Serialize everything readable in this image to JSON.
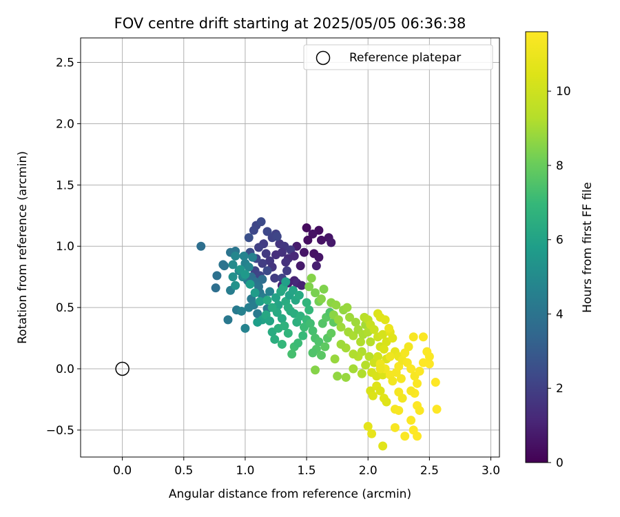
{
  "chart_data": {
    "type": "scatter",
    "title": "FOV centre drift starting at 2025/05/05 06:36:38",
    "xlabel": "Angular distance from reference (arcmin)",
    "ylabel": "Rotation from reference (arcmin)",
    "xlim": [
      -0.34,
      3.07
    ],
    "ylim": [
      -0.72,
      2.7
    ],
    "xticks": [
      "0.0",
      "0.5",
      "1.0",
      "1.5",
      "2.0",
      "2.5",
      "3.0"
    ],
    "yticks": [
      "−0.5",
      "0.0",
      "0.5",
      "1.0",
      "1.5",
      "2.0",
      "2.5"
    ],
    "grid": true,
    "legend": {
      "placement": "top-right",
      "entries": [
        "Reference platepar"
      ]
    },
    "reference_point": {
      "x": 0.0,
      "y": 0.0,
      "label": "Reference platepar"
    },
    "colorbar": {
      "label": "Hours from first FF file",
      "colormap": "viridis",
      "range": [
        0,
        11.6
      ],
      "ticks": [
        "0",
        "2",
        "4",
        "6",
        "8",
        "10"
      ]
    },
    "series": [
      {
        "color_by": "hours",
        "points": [
          [
            1.5,
            1.15,
            0.3
          ],
          [
            1.6,
            1.13,
            0.4
          ],
          [
            1.55,
            1.1,
            0.5
          ],
          [
            1.68,
            1.07,
            0.6
          ],
          [
            1.7,
            1.03,
            0.7
          ],
          [
            1.51,
            1.05,
            0.4
          ],
          [
            1.62,
            1.05,
            0.5
          ],
          [
            1.42,
            1.0,
            0.8
          ],
          [
            1.48,
            0.95,
            0.6
          ],
          [
            1.56,
            0.94,
            0.5
          ],
          [
            1.6,
            0.91,
            0.6
          ],
          [
            1.45,
            0.84,
            0.7
          ],
          [
            1.58,
            0.84,
            0.9
          ],
          [
            1.4,
            0.72,
            1.0
          ],
          [
            1.3,
            0.68,
            1.1
          ],
          [
            1.35,
            0.7,
            1.0
          ],
          [
            1.42,
            0.7,
            1.2
          ],
          [
            1.46,
            0.68,
            1.0
          ],
          [
            1.09,
            1.17,
            2.2
          ],
          [
            1.13,
            1.2,
            2.4
          ],
          [
            1.07,
            1.13,
            2.3
          ],
          [
            1.18,
            1.12,
            2.3
          ],
          [
            1.25,
            1.1,
            2.0
          ],
          [
            1.22,
            1.07,
            2.1
          ],
          [
            1.28,
            1.02,
            1.6
          ],
          [
            1.32,
            1.0,
            1.7
          ],
          [
            1.37,
            0.97,
            1.8
          ],
          [
            1.3,
            0.95,
            1.5
          ],
          [
            1.25,
            0.93,
            1.4
          ],
          [
            1.35,
            0.9,
            1.3
          ],
          [
            1.4,
            0.92,
            1.2
          ],
          [
            1.15,
            1.02,
            1.9
          ],
          [
            1.11,
            0.99,
            2.0
          ],
          [
            1.17,
            0.94,
            1.8
          ],
          [
            1.2,
            0.88,
            1.7
          ],
          [
            1.22,
            0.83,
            1.6
          ],
          [
            1.14,
            0.86,
            1.9
          ],
          [
            1.09,
            0.9,
            2.3
          ],
          [
            1.04,
            0.95,
            2.5
          ],
          [
            1.08,
            0.8,
            2.1
          ],
          [
            1.12,
            0.76,
            2.2
          ],
          [
            1.03,
            1.07,
            2.6
          ],
          [
            1.26,
            1.08,
            2.2
          ],
          [
            1.33,
            0.87,
            1.5
          ],
          [
            1.18,
            0.8,
            2.4
          ],
          [
            1.24,
            0.74,
            1.9
          ],
          [
            1.3,
            0.74,
            2.1
          ],
          [
            1.34,
            0.8,
            1.9
          ],
          [
            0.64,
            1.0,
            3.8
          ],
          [
            0.77,
            0.76,
            3.9
          ],
          [
            0.76,
            0.66,
            3.8
          ],
          [
            0.82,
            0.85,
            4.0
          ],
          [
            0.83,
            0.84,
            4.0
          ],
          [
            0.88,
            0.95,
            4.0
          ],
          [
            0.92,
            0.96,
            4.1
          ],
          [
            0.86,
            0.4,
            4.2
          ],
          [
            0.93,
            0.48,
            4.3
          ],
          [
            0.88,
            0.64,
            4.4
          ],
          [
            0.97,
            0.47,
            4.6
          ],
          [
            1.0,
            0.33,
            4.7
          ],
          [
            1.03,
            0.5,
            4.5
          ],
          [
            1.05,
            0.57,
            4.3
          ],
          [
            1.07,
            0.52,
            4.4
          ],
          [
            1.1,
            0.45,
            4.3
          ],
          [
            1.12,
            0.62,
            4.2
          ],
          [
            1.15,
            0.58,
            4.4
          ],
          [
            1.18,
            0.49,
            4.3
          ],
          [
            1.2,
            0.63,
            4.6
          ],
          [
            1.02,
            0.72,
            4.2
          ],
          [
            1.05,
            0.75,
            3.8
          ],
          [
            1.08,
            0.71,
            3.9
          ],
          [
            1.11,
            0.67,
            4.0
          ],
          [
            1.14,
            0.73,
            3.8
          ],
          [
            0.95,
            0.8,
            4.8
          ],
          [
            0.98,
            0.75,
            4.9
          ],
          [
            1.0,
            0.86,
            4.6
          ],
          [
            1.03,
            0.83,
            4.8
          ],
          [
            0.9,
            0.85,
            5.0
          ],
          [
            0.92,
            0.92,
            4.8
          ],
          [
            0.99,
            0.92,
            4.7
          ],
          [
            1.06,
            0.91,
            4.6
          ],
          [
            0.9,
            0.75,
            5.2
          ],
          [
            0.92,
            0.68,
            5.3
          ],
          [
            0.96,
            0.81,
            5.5
          ],
          [
            1.0,
            0.77,
            5.6
          ],
          [
            1.04,
            0.69,
            5.8
          ],
          [
            1.08,
            0.62,
            5.7
          ],
          [
            1.12,
            0.55,
            5.9
          ],
          [
            1.14,
            0.4,
            6.0
          ],
          [
            1.1,
            0.38,
            5.8
          ],
          [
            1.17,
            0.44,
            6.2
          ],
          [
            1.2,
            0.39,
            6.1
          ],
          [
            1.22,
            0.3,
            6.4
          ],
          [
            1.24,
            0.24,
            6.5
          ],
          [
            1.27,
            0.33,
            6.6
          ],
          [
            1.3,
            0.41,
            6.3
          ],
          [
            1.32,
            0.35,
            6.7
          ],
          [
            1.35,
            0.29,
            6.8
          ],
          [
            1.3,
            0.2,
            6.9
          ],
          [
            1.37,
            0.47,
            6.4
          ],
          [
            1.4,
            0.45,
            6.5
          ],
          [
            1.42,
            0.38,
            6.6
          ],
          [
            1.45,
            0.43,
            6.7
          ],
          [
            1.47,
            0.27,
            7.0
          ],
          [
            1.4,
            0.18,
            7.2
          ],
          [
            1.38,
            0.12,
            7.3
          ],
          [
            1.43,
            0.21,
            7.1
          ],
          [
            1.25,
            0.58,
            6.0
          ],
          [
            1.27,
            0.52,
            6.1
          ],
          [
            1.29,
            0.63,
            6.2
          ],
          [
            1.31,
            0.66,
            6.3
          ],
          [
            1.33,
            0.55,
            6.4
          ],
          [
            1.35,
            0.5,
            6.5
          ],
          [
            1.26,
            0.46,
            6.3
          ],
          [
            1.22,
            0.5,
            6.4
          ],
          [
            1.18,
            0.56,
            6.3
          ],
          [
            1.33,
            0.71,
            5.9
          ],
          [
            1.36,
            0.6,
            6.0
          ],
          [
            1.39,
            0.64,
            6.1
          ],
          [
            1.41,
            0.56,
            6.2
          ],
          [
            1.44,
            0.6,
            6.3
          ],
          [
            1.5,
            0.54,
            6.8
          ],
          [
            1.52,
            0.48,
            6.9
          ],
          [
            1.5,
            0.4,
            7.0
          ],
          [
            1.48,
            0.34,
            7.1
          ],
          [
            1.53,
            0.37,
            7.2
          ],
          [
            1.55,
            0.31,
            7.3
          ],
          [
            1.57,
            0.25,
            7.4
          ],
          [
            1.6,
            0.22,
            7.5
          ],
          [
            1.58,
            0.16,
            7.6
          ],
          [
            1.55,
            0.13,
            7.5
          ],
          [
            1.62,
            0.11,
            7.7
          ],
          [
            1.65,
            0.18,
            7.8
          ],
          [
            1.67,
            0.25,
            7.7
          ],
          [
            1.7,
            0.29,
            7.9
          ],
          [
            1.63,
            0.37,
            7.6
          ],
          [
            1.66,
            0.42,
            7.7
          ],
          [
            1.69,
            0.46,
            7.5
          ],
          [
            1.72,
            0.38,
            7.8
          ],
          [
            1.52,
            0.67,
            8.4
          ],
          [
            1.54,
            0.74,
            8.5
          ],
          [
            1.57,
            0.62,
            8.3
          ],
          [
            1.6,
            0.55,
            8.2
          ],
          [
            1.62,
            0.57,
            8.5
          ],
          [
            1.64,
            0.65,
            8.4
          ],
          [
            1.7,
            0.54,
            8.6
          ],
          [
            1.74,
            0.52,
            8.7
          ],
          [
            1.72,
            0.44,
            8.6
          ],
          [
            1.76,
            0.4,
            8.8
          ],
          [
            1.78,
            0.34,
            8.9
          ],
          [
            1.8,
            0.48,
            8.7
          ],
          [
            1.83,
            0.5,
            8.8
          ],
          [
            1.85,
            0.42,
            8.9
          ],
          [
            1.84,
            0.3,
            9.0
          ],
          [
            1.88,
            0.27,
            9.1
          ],
          [
            1.9,
            0.38,
            8.9
          ],
          [
            1.92,
            0.32,
            9.0
          ],
          [
            1.94,
            0.22,
            9.2
          ],
          [
            1.96,
            0.28,
            9.1
          ],
          [
            1.98,
            0.36,
            9.0
          ],
          [
            2.0,
            0.3,
            9.2
          ],
          [
            2.02,
            0.22,
            9.3
          ],
          [
            1.95,
            0.14,
            9.2
          ],
          [
            1.92,
            0.1,
            9.3
          ],
          [
            1.88,
            0.12,
            9.2
          ],
          [
            1.82,
            0.17,
            9.0
          ],
          [
            1.78,
            0.2,
            8.9
          ],
          [
            1.73,
            0.08,
            8.8
          ],
          [
            1.75,
            -0.06,
            8.7
          ],
          [
            1.82,
            -0.07,
            8.8
          ],
          [
            1.88,
            0.0,
            9.0
          ],
          [
            1.95,
            -0.04,
            9.2
          ],
          [
            1.98,
            0.03,
            9.3
          ],
          [
            2.01,
            0.1,
            9.4
          ],
          [
            1.57,
            -0.01,
            8.5
          ],
          [
            1.97,
            0.42,
            9.4
          ],
          [
            2.0,
            0.4,
            9.5
          ],
          [
            2.02,
            0.36,
            9.8
          ],
          [
            2.05,
            0.32,
            9.9
          ],
          [
            2.08,
            0.26,
            10.0
          ],
          [
            2.1,
            0.18,
            10.1
          ],
          [
            2.12,
            0.28,
            10.2
          ],
          [
            2.15,
            0.22,
            10.3
          ],
          [
            2.13,
            0.16,
            10.4
          ],
          [
            2.15,
            0.08,
            10.4
          ],
          [
            2.05,
            0.05,
            10.0
          ],
          [
            2.08,
            0.1,
            10.1
          ],
          [
            2.03,
            -0.03,
            10.2
          ],
          [
            2.07,
            -0.06,
            10.3
          ],
          [
            2.12,
            -0.05,
            10.4
          ],
          [
            2.02,
            -0.18,
            10.3
          ],
          [
            2.04,
            -0.22,
            10.4
          ],
          [
            2.07,
            -0.14,
            10.5
          ],
          [
            2.1,
            -0.18,
            10.4
          ],
          [
            2.13,
            -0.24,
            10.6
          ],
          [
            2.15,
            -0.27,
            10.5
          ],
          [
            2.08,
            0.45,
            10.4
          ],
          [
            2.1,
            0.42,
            10.5
          ],
          [
            2.14,
            0.4,
            10.6
          ],
          [
            2.18,
            0.3,
            10.7
          ],
          [
            2.2,
            0.25,
            10.6
          ],
          [
            2.22,
            0.14,
            10.8
          ],
          [
            2.25,
            0.1,
            10.9
          ],
          [
            2.12,
            -0.63,
            10.6
          ],
          [
            2.0,
            -0.47,
            10.7
          ],
          [
            2.03,
            -0.53,
            10.8
          ],
          [
            2.1,
            0.04,
            11.1
          ],
          [
            2.14,
            0.0,
            11.2
          ],
          [
            2.18,
            -0.05,
            11.3
          ],
          [
            2.2,
            -0.1,
            11.2
          ],
          [
            2.23,
            -0.03,
            11.3
          ],
          [
            2.25,
            0.02,
            11.4
          ],
          [
            2.28,
            0.07,
            11.2
          ],
          [
            2.3,
            0.13,
            11.3
          ],
          [
            2.32,
            0.05,
            11.4
          ],
          [
            2.35,
            0.0,
            11.5
          ],
          [
            2.38,
            -0.06,
            11.4
          ],
          [
            2.4,
            -0.12,
            11.5
          ],
          [
            2.42,
            -0.02,
            11.5
          ],
          [
            2.45,
            0.05,
            11.6
          ],
          [
            2.48,
            0.14,
            11.5
          ],
          [
            2.5,
            0.04,
            11.6
          ],
          [
            2.38,
            -0.2,
            11.5
          ],
          [
            2.35,
            -0.18,
            11.4
          ],
          [
            2.4,
            -0.3,
            11.6
          ],
          [
            2.42,
            -0.34,
            11.5
          ],
          [
            2.25,
            -0.19,
            11.3
          ],
          [
            2.28,
            -0.24,
            11.2
          ],
          [
            2.22,
            -0.33,
            11.3
          ],
          [
            2.25,
            -0.34,
            11.4
          ],
          [
            2.22,
            -0.48,
            11.4
          ],
          [
            2.3,
            -0.55,
            11.5
          ],
          [
            2.35,
            -0.42,
            11.5
          ],
          [
            2.37,
            -0.5,
            11.6
          ],
          [
            2.4,
            -0.55,
            11.6
          ],
          [
            2.37,
            0.26,
            11.4
          ],
          [
            2.45,
            0.26,
            11.5
          ],
          [
            2.5,
            0.1,
            11.5
          ],
          [
            2.55,
            -0.11,
            11.6
          ],
          [
            2.56,
            -0.33,
            11.6
          ],
          [
            2.1,
            0.0,
            11.0
          ],
          [
            2.17,
            0.33,
            11.0
          ],
          [
            2.18,
            0.1,
            11.1
          ],
          [
            2.33,
            0.18,
            11.2
          ],
          [
            2.27,
            -0.08,
            11.3
          ]
        ]
      }
    ]
  }
}
